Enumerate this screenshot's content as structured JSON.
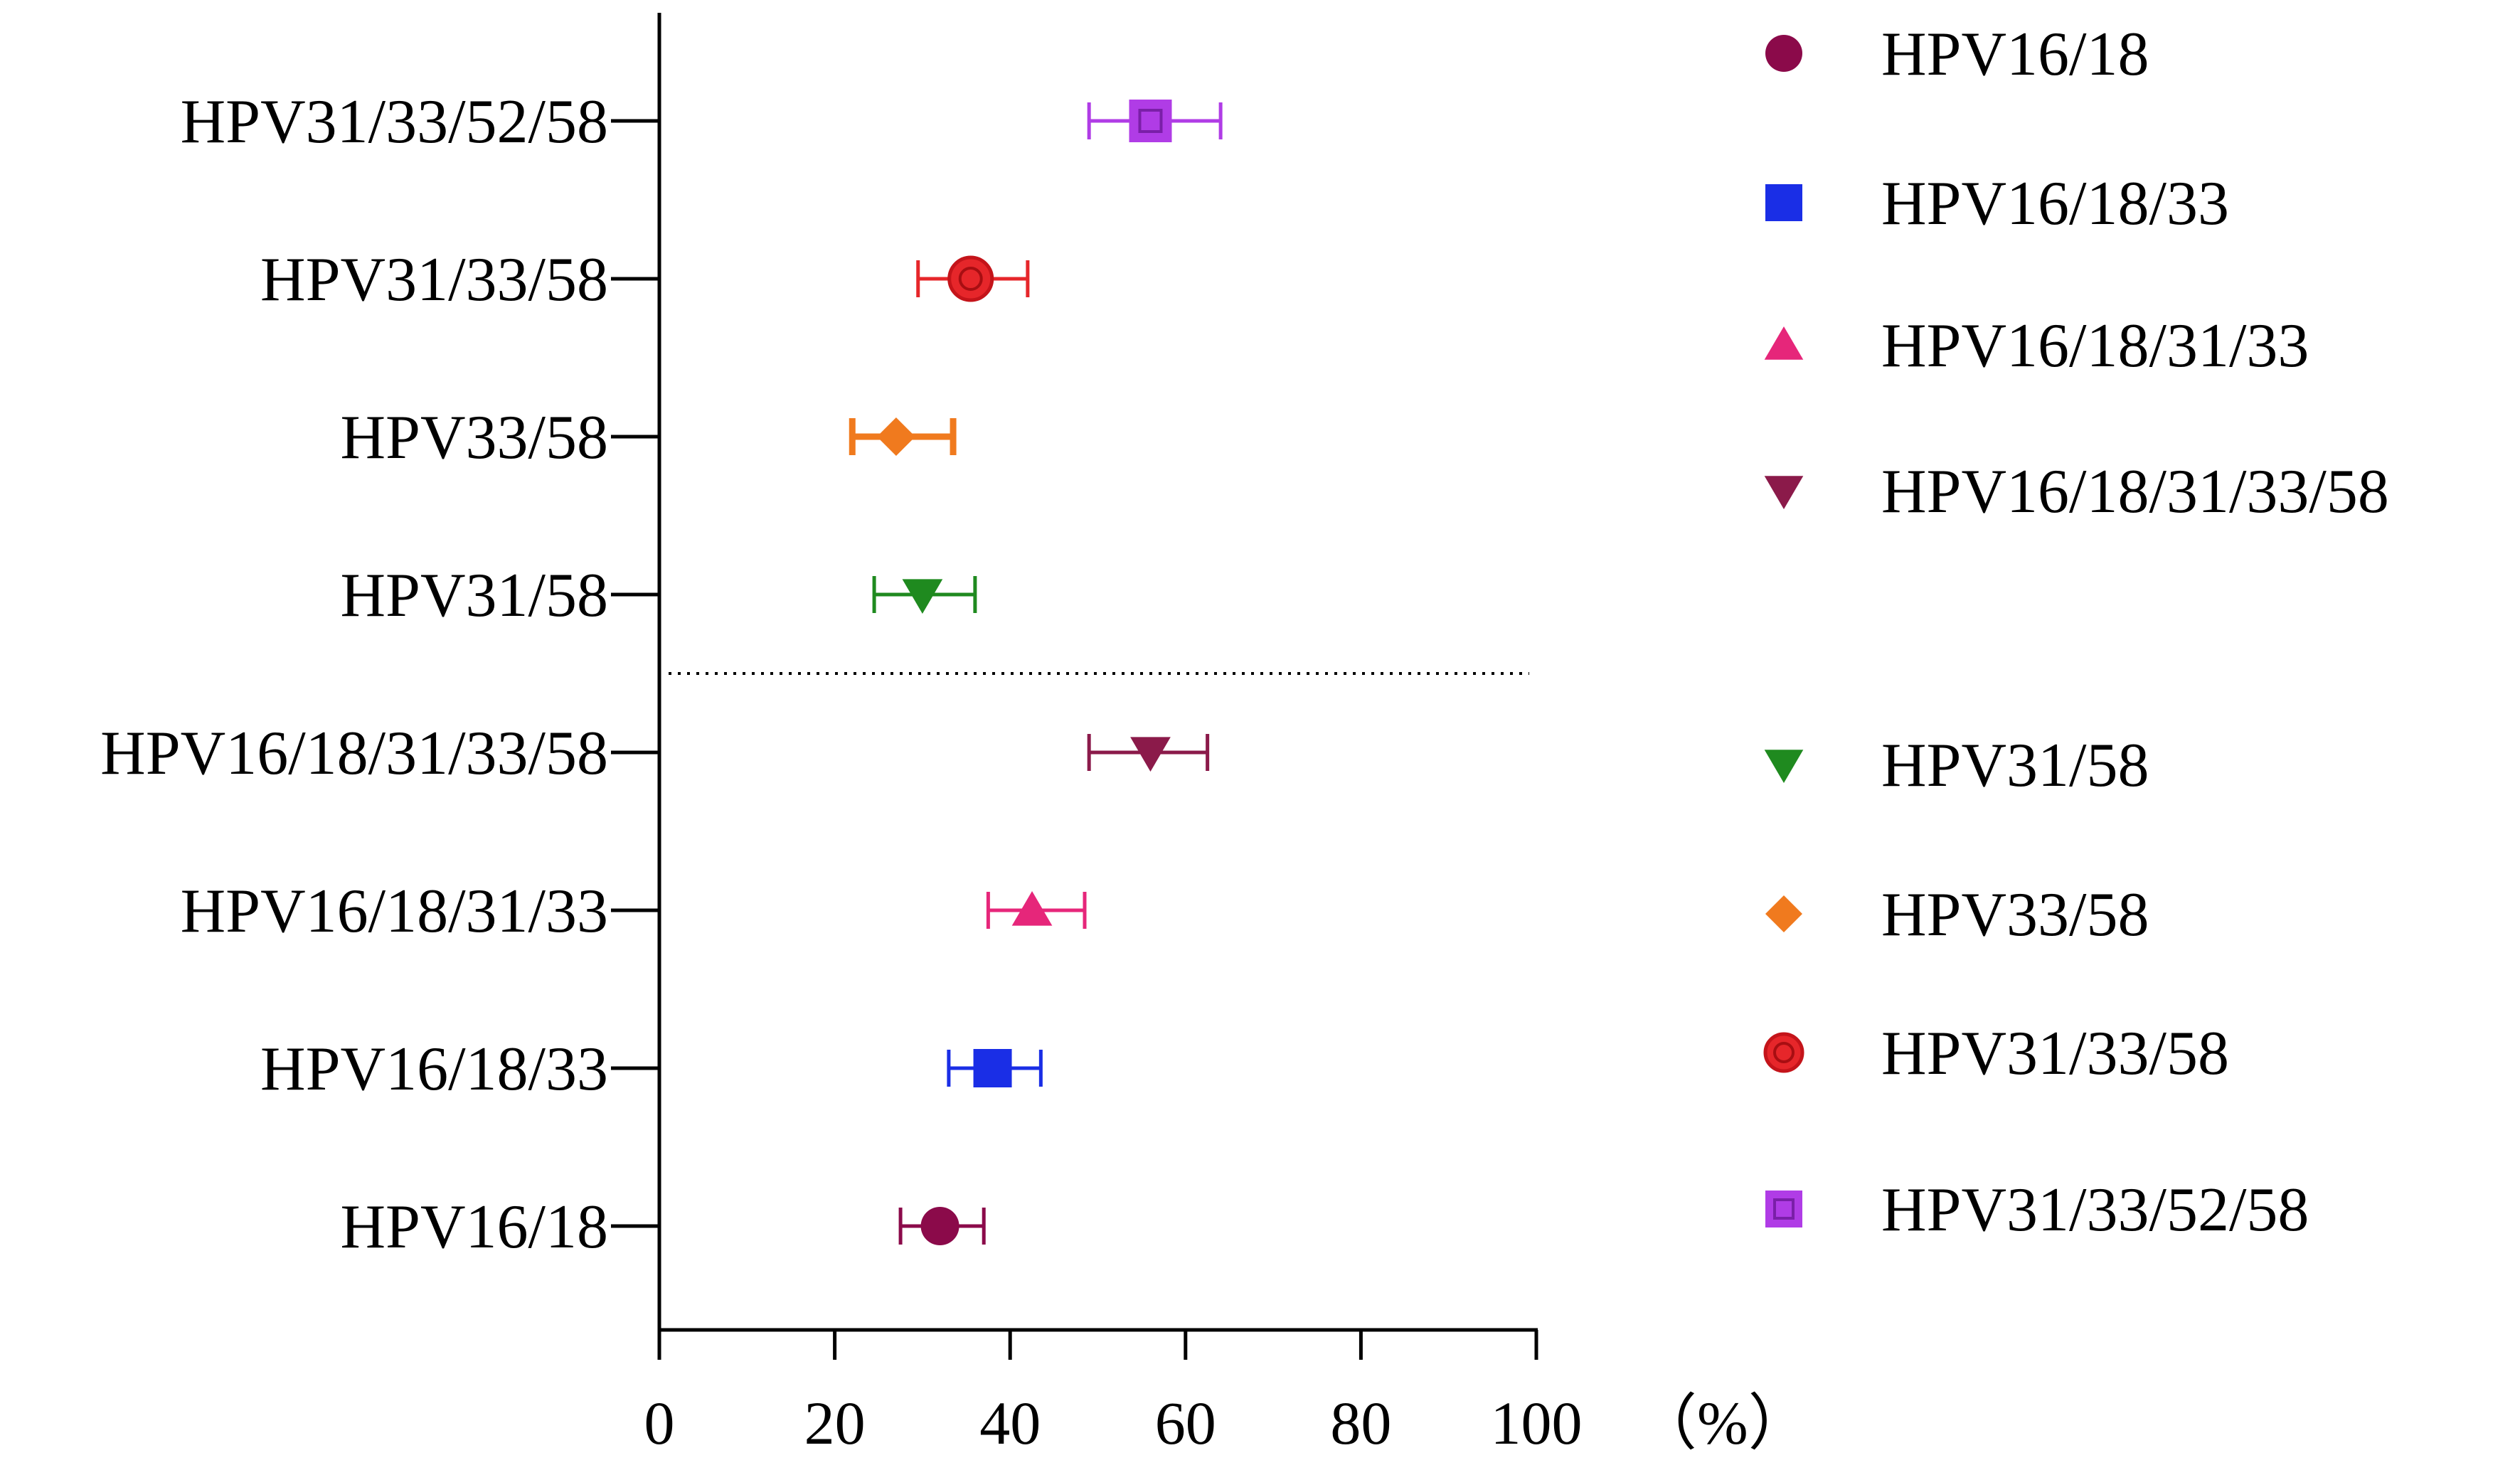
{
  "chart_data": {
    "type": "scatter",
    "subtype": "forest-plot-with-error-bars",
    "title": "",
    "xlabel": "",
    "unit_label": "（%）",
    "xlim": [
      0,
      100
    ],
    "x_ticks": [
      0,
      20,
      40,
      60,
      80,
      100
    ],
    "grid": false,
    "categories": [
      "HPV31/33/52/58",
      "HPV31/33/58",
      "HPV33/58",
      "HPV31/58",
      "HPV16/18/31/33/58",
      "HPV16/18/31/33",
      "HPV16/18/33",
      "HPV16/18"
    ],
    "group_separator_after_index": 3,
    "series": [
      {
        "name": "HPV31/33/52/58",
        "value": 56,
        "lower": 49,
        "upper": 64,
        "color": "#b03ce6",
        "marker": "open-square"
      },
      {
        "name": "HPV31/33/58",
        "value": 35.5,
        "lower": 29.5,
        "upper": 42,
        "color": "#e6262a",
        "marker": "open-circle"
      },
      {
        "name": "HPV33/58",
        "value": 27,
        "lower": 22,
        "upper": 33.5,
        "color": "#f07a1e",
        "marker": "diamond"
      },
      {
        "name": "HPV31/58",
        "value": 30,
        "lower": 24.5,
        "upper": 36,
        "color": "#1f8a1f",
        "marker": "triangle-down"
      },
      {
        "name": "HPV16/18/31/33/58",
        "value": 56,
        "lower": 49,
        "upper": 62.5,
        "color": "#8b1a4a",
        "marker": "triangle-down"
      },
      {
        "name": "HPV16/18/31/33",
        "value": 42.5,
        "lower": 37.5,
        "upper": 48.5,
        "color": "#e6267a",
        "marker": "triangle-up"
      },
      {
        "name": "HPV16/18/33",
        "value": 38,
        "lower": 33,
        "upper": 43.5,
        "color": "#1a2ee6",
        "marker": "square"
      },
      {
        "name": "HPV16/18",
        "value": 32,
        "lower": 27.5,
        "upper": 37,
        "color": "#8b0a4a",
        "marker": "circle"
      }
    ],
    "legend": {
      "position": "right",
      "entries": [
        {
          "label": "HPV16/18",
          "color": "#8b0a4a",
          "marker": "circle"
        },
        {
          "label": "HPV16/18/33",
          "color": "#1a2ee6",
          "marker": "square"
        },
        {
          "label": "HPV16/18/31/33",
          "color": "#e6267a",
          "marker": "triangle-up"
        },
        {
          "label": "HPV16/18/31/33/58",
          "color": "#8b1a4a",
          "marker": "triangle-down"
        },
        {
          "label": "HPV31/58",
          "color": "#1f8a1f",
          "marker": "triangle-down"
        },
        {
          "label": "HPV33/58",
          "color": "#f07a1e",
          "marker": "diamond"
        },
        {
          "label": "HPV31/33/58",
          "color": "#e6262a",
          "marker": "open-circle"
        },
        {
          "label": "HPV31/33/52/58",
          "color": "#b03ce6",
          "marker": "open-square"
        }
      ]
    }
  }
}
